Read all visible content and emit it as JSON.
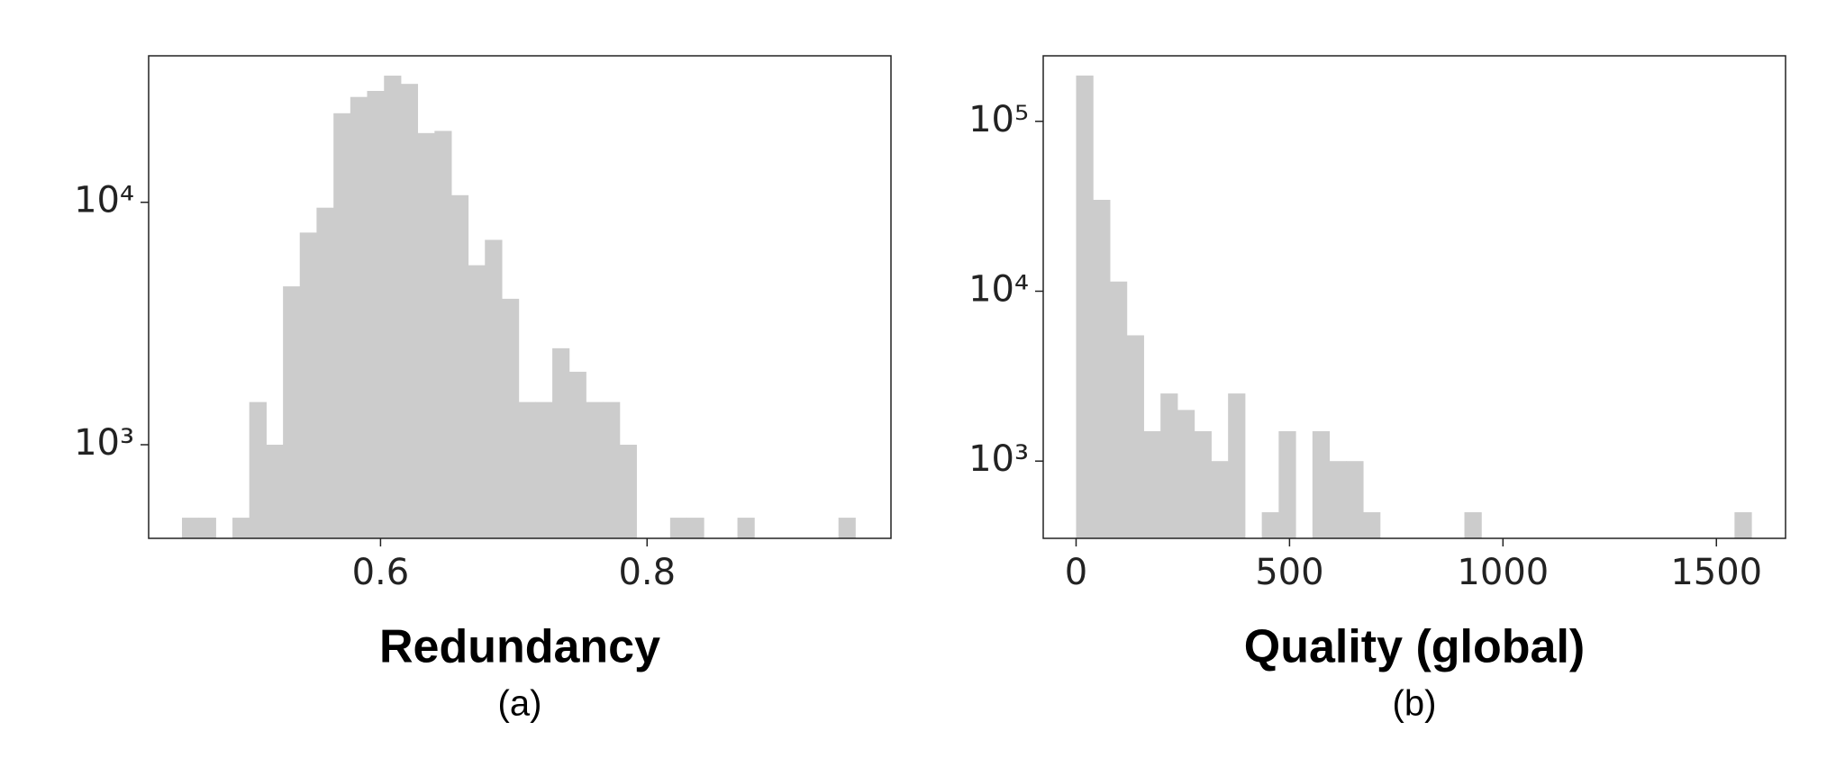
{
  "chart_data": [
    {
      "type": "histogram",
      "xlabel": "Redundancy",
      "caption": "(a)",
      "color": "#cccccc",
      "log_y": true,
      "bins": [
        0.451,
        0.4636,
        0.4763,
        0.4889,
        0.5015,
        0.5142,
        0.5268,
        0.5394,
        0.552,
        0.5647,
        0.5773,
        0.5899,
        0.6026,
        0.6152,
        0.6278,
        0.6405,
        0.6531,
        0.6657,
        0.6783,
        0.691,
        0.7036,
        0.7162,
        0.7289,
        0.7415,
        0.7541,
        0.7668,
        0.7794,
        0.792,
        0.8046,
        0.8173,
        0.8299,
        0.8425,
        0.8552,
        0.8678,
        0.8804,
        0.8931,
        0.9057,
        0.9183,
        0.9309,
        0.9436,
        0.9562
      ],
      "values": [
        500,
        500,
        0,
        500,
        1500,
        1000,
        4500,
        7500,
        9500,
        23300,
        27200,
        28800,
        33300,
        30800,
        19300,
        19700,
        10700,
        5500,
        7000,
        4000,
        1500,
        1500,
        2500,
        2000,
        1500,
        1500,
        1000,
        0,
        0,
        500,
        500,
        0,
        0,
        500,
        0,
        0,
        0,
        0,
        0,
        500
      ],
      "xlim": [
        0.426,
        0.983
      ],
      "xticks": [
        0.6,
        0.8
      ],
      "ylim": [
        411,
        40200
      ],
      "yticks": [
        {
          "value": 1000,
          "label": "10³"
        },
        {
          "value": 10000,
          "label": "10⁴"
        }
      ]
    },
    {
      "type": "histogram",
      "xlabel": "Quality (global)",
      "caption": "(b)",
      "color": "#cccccc",
      "log_y": true,
      "bins": [
        0,
        39.55,
        79.1,
        118.65,
        158.2,
        197.75,
        237.3,
        276.85,
        316.4,
        355.95,
        395.5,
        435.05,
        474.6,
        514.15,
        553.7,
        593.25,
        632.8,
        672.35,
        711.9,
        751.45,
        791,
        830.55,
        870.1,
        909.65,
        949.2,
        988.75,
        1028.3,
        1067.85,
        1107.4,
        1146.95,
        1186.5,
        1226.05,
        1265.6,
        1305.15,
        1344.7,
        1384.25,
        1423.8,
        1463.35,
        1502.9,
        1542.45,
        1582
      ],
      "values": [
        186000,
        34500,
        11400,
        5500,
        1500,
        2500,
        2000,
        1500,
        1000,
        2500,
        0,
        500,
        1500,
        0,
        1500,
        1000,
        1000,
        500,
        0,
        0,
        0,
        0,
        0,
        500,
        0,
        0,
        0,
        0,
        0,
        0,
        0,
        0,
        0,
        0,
        0,
        0,
        0,
        0,
        0,
        500
      ],
      "xlim": [
        -77,
        1662
      ],
      "xticks": [
        0,
        500,
        1000,
        1500
      ],
      "ylim": [
        351,
        243000
      ],
      "yticks": [
        {
          "value": 1000,
          "label": "10³"
        },
        {
          "value": 10000,
          "label": "10⁴"
        },
        {
          "value": 100000,
          "label": "10⁵"
        }
      ]
    }
  ]
}
